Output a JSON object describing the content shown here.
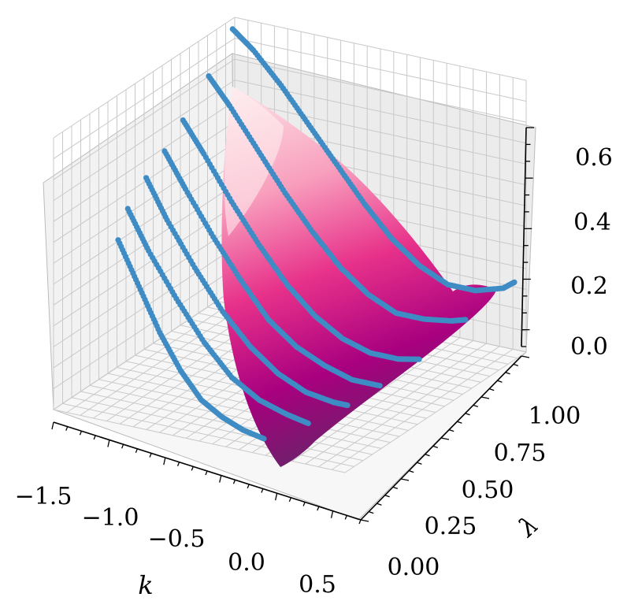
{
  "chart_data": {
    "type": "surface3d",
    "title": "",
    "xlabel": "k",
    "ylabel": "λ",
    "zlabel": "",
    "xlim": [
      -1.5,
      0.6
    ],
    "ylim": [
      0.0,
      1.0
    ],
    "zlim": [
      0.0,
      0.65
    ],
    "x_ticks": [
      "−1.5",
      "−1.0",
      "−0.5",
      "0.0",
      "0.5"
    ],
    "y_ticks": [
      "0.00",
      "0.25",
      "0.50",
      "0.75",
      "1.00"
    ],
    "z_ticks": [
      "0.0",
      "0.2",
      "0.4",
      "0.6"
    ],
    "grid": true,
    "surface_colormap": "RdPu",
    "surface_color_stops": [
      "#fde7ea",
      "#f89fbd",
      "#e7318a",
      "#a8007f",
      "#6f1f6b"
    ],
    "marker_color": "#3f8cc5",
    "series": [
      {
        "lambda": 0.05,
        "k": [
          -1.1,
          -0.95,
          -0.8,
          -0.65,
          -0.5,
          -0.35,
          -0.2,
          -0.05
        ],
        "z": [
          0.42,
          0.32,
          0.22,
          0.14,
          0.08,
          0.05,
          0.03,
          0.02
        ]
      },
      {
        "lambda": 0.18,
        "k": [
          -1.2,
          -1.05,
          -0.85,
          -0.65,
          -0.45,
          -0.25,
          -0.05,
          0.1
        ],
        "z": [
          0.45,
          0.36,
          0.26,
          0.17,
          0.1,
          0.06,
          0.04,
          0.03
        ]
      },
      {
        "lambda": 0.32,
        "k": [
          -1.25,
          -1.1,
          -0.9,
          -0.7,
          -0.5,
          -0.3,
          -0.1,
          0.1,
          0.2
        ],
        "z": [
          0.48,
          0.39,
          0.29,
          0.2,
          0.13,
          0.08,
          0.05,
          0.04,
          0.04
        ]
      },
      {
        "lambda": 0.46,
        "k": [
          -1.3,
          -1.15,
          -0.95,
          -0.75,
          -0.55,
          -0.35,
          -0.15,
          0.05,
          0.25
        ],
        "z": [
          0.5,
          0.42,
          0.32,
          0.23,
          0.15,
          0.1,
          0.07,
          0.05,
          0.05
        ]
      },
      {
        "lambda": 0.6,
        "k": [
          -1.35,
          -1.2,
          -1.0,
          -0.8,
          -0.6,
          -0.4,
          -0.2,
          0.0,
          0.2,
          0.35
        ],
        "z": [
          0.53,
          0.46,
          0.36,
          0.27,
          0.19,
          0.13,
          0.09,
          0.07,
          0.07,
          0.08
        ]
      },
      {
        "lambda": 0.78,
        "k": [
          -1.4,
          -1.25,
          -1.05,
          -0.85,
          -0.65,
          -0.45,
          -0.25,
          -0.05,
          0.15,
          0.35,
          0.45
        ],
        "z": [
          0.58,
          0.52,
          0.43,
          0.34,
          0.26,
          0.19,
          0.14,
          0.11,
          0.11,
          0.12,
          0.13
        ]
      },
      {
        "lambda": 0.95,
        "k": [
          -1.45,
          -1.3,
          -1.1,
          -0.9,
          -0.7,
          -0.5,
          -0.3,
          -0.1,
          0.1,
          0.3,
          0.5,
          0.58
        ],
        "z": [
          0.64,
          0.6,
          0.53,
          0.45,
          0.37,
          0.29,
          0.22,
          0.17,
          0.14,
          0.14,
          0.16,
          0.18
        ]
      }
    ]
  }
}
